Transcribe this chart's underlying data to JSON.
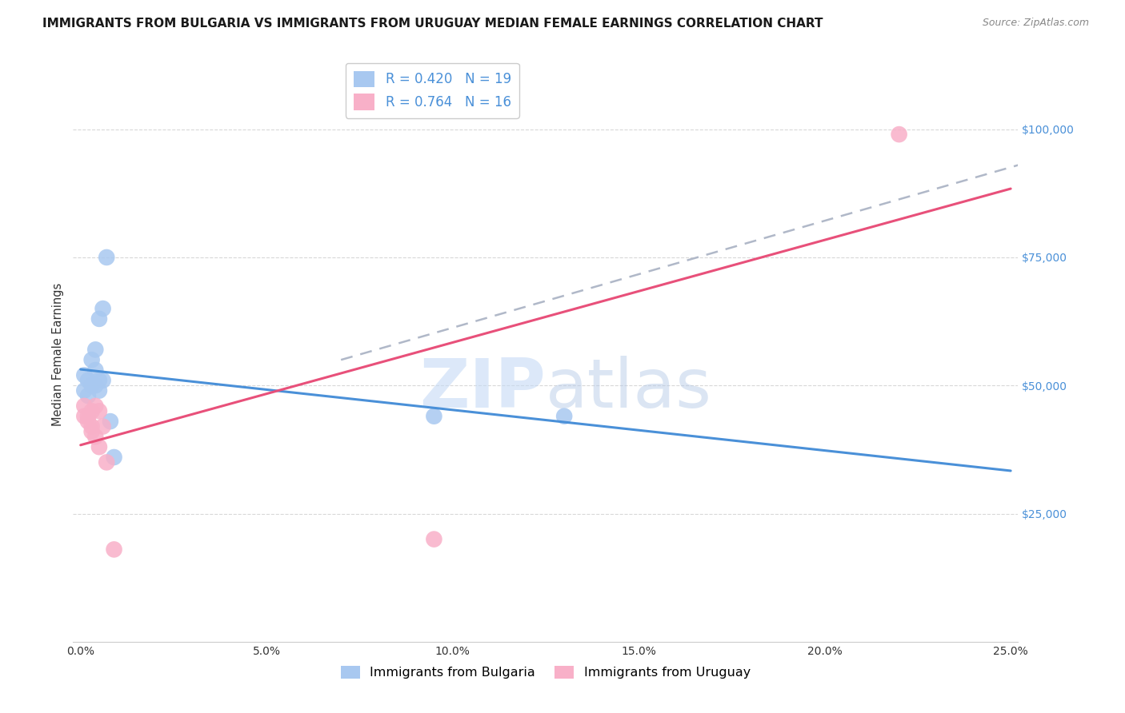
{
  "title": "IMMIGRANTS FROM BULGARIA VS IMMIGRANTS FROM URUGUAY MEDIAN FEMALE EARNINGS CORRELATION CHART",
  "source": "Source: ZipAtlas.com",
  "ylabel": "Median Female Earnings",
  "xlabel_ticks": [
    "0.0%",
    "5.0%",
    "10.0%",
    "15.0%",
    "20.0%",
    "25.0%"
  ],
  "xlabel_vals": [
    0.0,
    0.05,
    0.1,
    0.15,
    0.2,
    0.25
  ],
  "ytick_labels": [
    "$25,000",
    "$50,000",
    "$75,000",
    "$100,000"
  ],
  "ytick_vals": [
    25000,
    50000,
    75000,
    100000
  ],
  "xlim": [
    -0.002,
    0.252
  ],
  "ylim": [
    0,
    112000
  ],
  "bulgaria_x": [
    0.001,
    0.001,
    0.002,
    0.002,
    0.003,
    0.003,
    0.004,
    0.004,
    0.004,
    0.005,
    0.005,
    0.005,
    0.006,
    0.006,
    0.007,
    0.008,
    0.009,
    0.095,
    0.13
  ],
  "bulgaria_y": [
    49000,
    52000,
    51000,
    48000,
    55000,
    50000,
    53000,
    57000,
    50000,
    63000,
    51000,
    49000,
    65000,
    51000,
    75000,
    43000,
    36000,
    44000,
    44000
  ],
  "uruguay_x": [
    0.001,
    0.001,
    0.002,
    0.002,
    0.003,
    0.003,
    0.003,
    0.004,
    0.004,
    0.005,
    0.005,
    0.006,
    0.007,
    0.009,
    0.095,
    0.22
  ],
  "uruguay_y": [
    46000,
    44000,
    44000,
    43000,
    45000,
    42000,
    41000,
    46000,
    40000,
    45000,
    38000,
    42000,
    35000,
    18000,
    20000,
    99000
  ],
  "bulgaria_color": "#a8c8f0",
  "uruguay_color": "#f8b0c8",
  "bulgaria_line_color": "#4a90d8",
  "uruguay_line_color": "#e8507a",
  "dashed_color": "#b0b8c8",
  "ytick_color": "#4a90d8",
  "R_bulgaria": 0.42,
  "N_bulgaria": 19,
  "R_uruguay": 0.764,
  "N_uruguay": 16,
  "legend_bulgaria": "Immigrants from Bulgaria",
  "legend_uruguay": "Immigrants from Uruguay",
  "watermark_zip": "ZIP",
  "watermark_atlas": "atlas",
  "grid_color": "#d8d8d8",
  "title_fontsize": 11,
  "label_fontsize": 10.5,
  "tick_fontsize": 10,
  "source_fontsize": 9,
  "legend_fontsize": 12
}
